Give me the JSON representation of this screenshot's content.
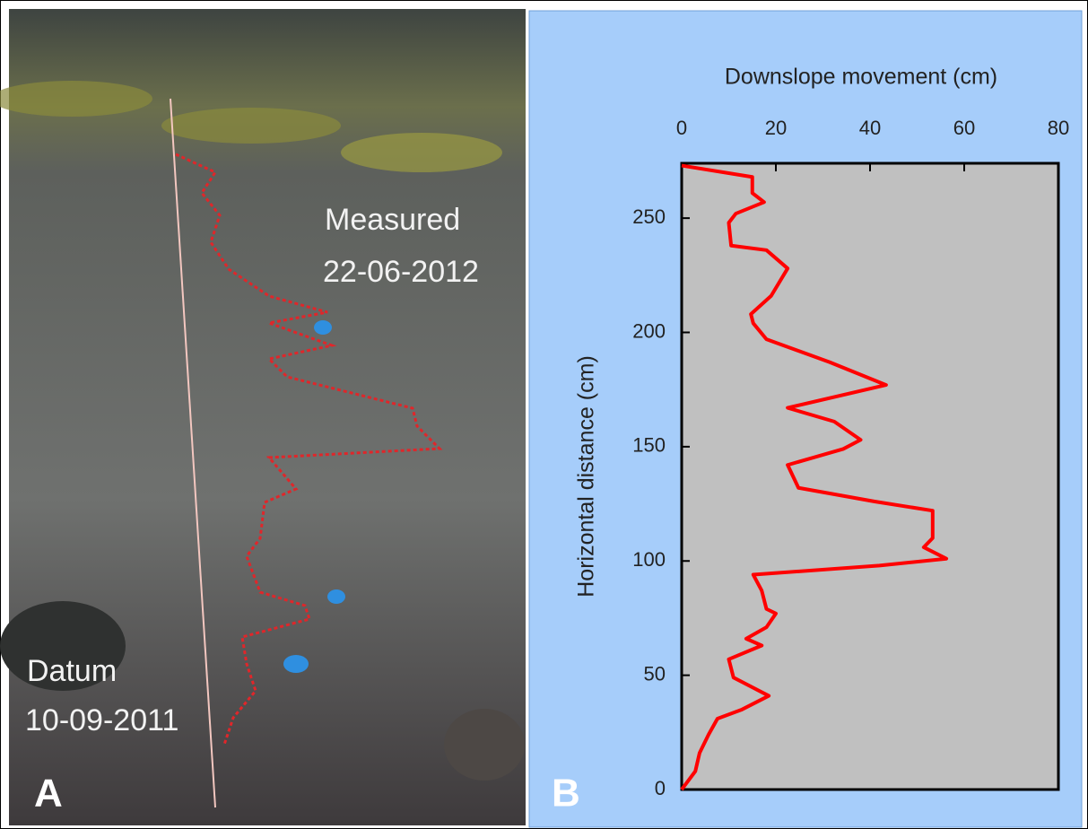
{
  "photo_panel": {
    "label": "A",
    "annotations": [
      "Measured",
      "22-06-2012",
      "Datum",
      "10-09-2011"
    ]
  },
  "chart_data": {
    "type": "line",
    "panel_label": "B",
    "title": "Downslope movement (cm)",
    "y_label": "Horizontal distance (cm)",
    "xlim": [
      0,
      80
    ],
    "xticks": [
      0,
      20,
      40,
      60,
      80
    ],
    "ylim": [
      0,
      274
    ],
    "yticks": [
      0,
      50,
      100,
      150,
      200,
      250
    ],
    "series": [
      {
        "color": "#ff0000",
        "x": [
          0,
          15,
          15,
          17.5,
          11.5,
          10,
          10.5,
          18,
          22.5,
          19,
          14.7,
          15.2,
          18,
          31.4,
          43.4,
          22.5,
          32.4,
          38,
          34.3,
          22.5,
          24.8,
          41,
          53.3,
          53.3,
          51.4,
          56.2,
          42,
          15.2,
          17,
          18,
          20,
          18,
          13.7,
          17,
          10,
          11,
          18.5,
          12.8,
          7.6,
          5.7,
          3.8,
          2.9,
          0
        ],
        "values": [
          273,
          268,
          261,
          257,
          252,
          248,
          238,
          236,
          228,
          216,
          208,
          204,
          197,
          187,
          177,
          167,
          161,
          153,
          149,
          142,
          132,
          126,
          122,
          110,
          106,
          101,
          98,
          94,
          87,
          79,
          77,
          71,
          66,
          63,
          57,
          49,
          41,
          35,
          31,
          24,
          16,
          8,
          0
        ]
      }
    ]
  }
}
